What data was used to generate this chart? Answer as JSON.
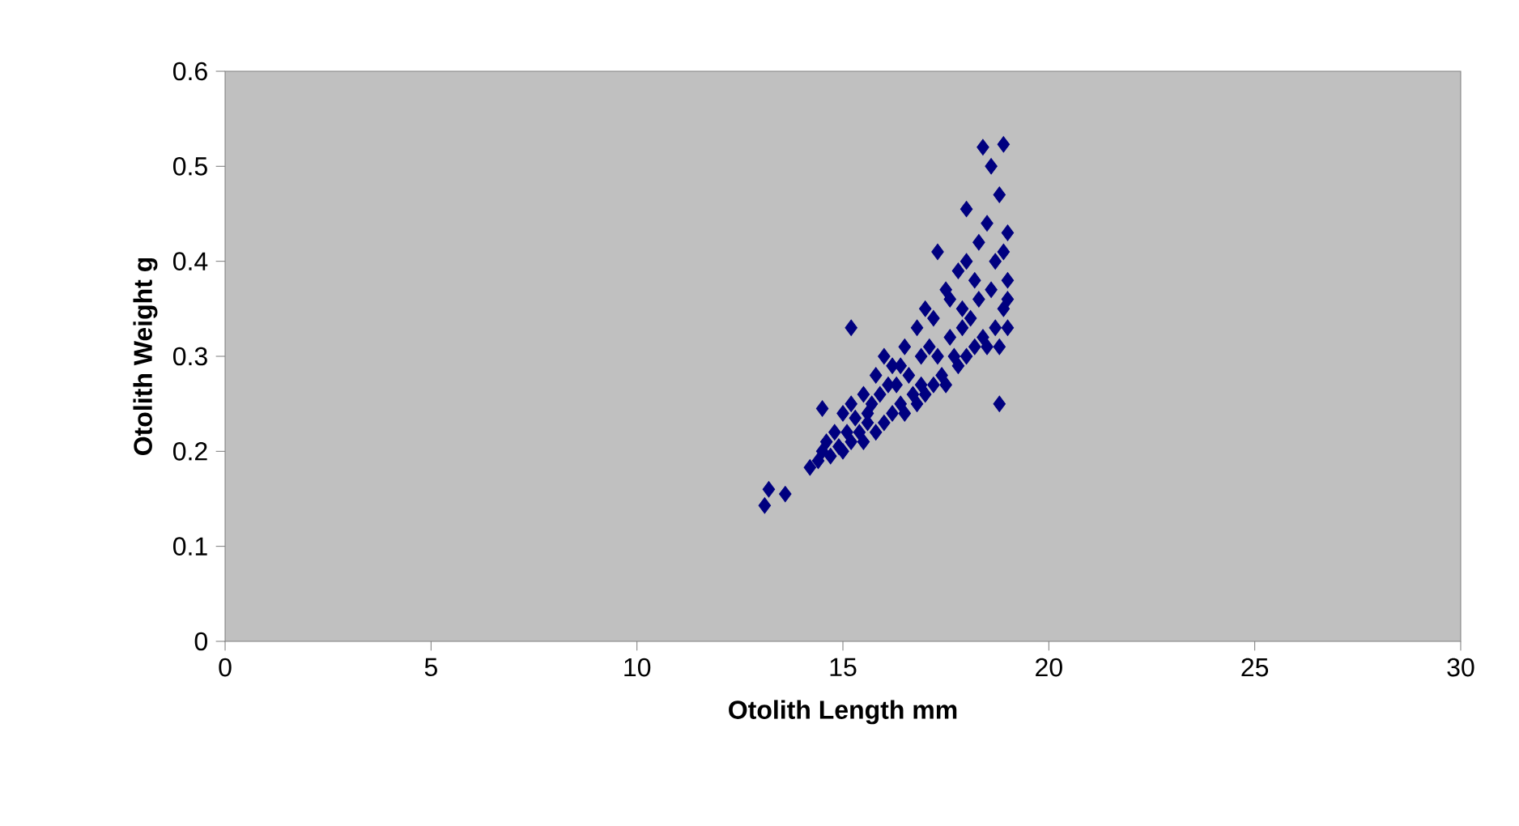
{
  "chart_data": {
    "type": "scatter",
    "xlabel": "Otolith Length mm",
    "ylabel": "Otolith Weight g",
    "xlim": [
      0,
      30
    ],
    "ylim": [
      0,
      0.6
    ],
    "xticks": [
      0,
      5,
      10,
      15,
      20,
      25,
      30
    ],
    "yticks": [
      0,
      0.1,
      0.2,
      0.3,
      0.4,
      0.5,
      0.6
    ],
    "marker": "diamond",
    "series": [
      {
        "color": "#000080",
        "x": [
          13.1,
          13.2,
          13.6,
          14.2,
          14.4,
          14.5,
          14.6,
          14.7,
          14.8,
          14.9,
          15.0,
          15.0,
          15.1,
          15.2,
          15.2,
          15.3,
          15.4,
          15.5,
          15.5,
          15.6,
          15.7,
          15.8,
          15.8,
          15.9,
          16.0,
          16.0,
          16.1,
          16.2,
          16.2,
          16.3,
          16.4,
          16.5,
          16.5,
          16.6,
          16.7,
          16.8,
          16.8,
          16.9,
          17.0,
          17.0,
          17.1,
          17.2,
          17.2,
          17.3,
          17.4,
          17.5,
          17.5,
          17.6,
          17.7,
          17.8,
          17.8,
          17.9,
          18.0,
          18.0,
          18.1,
          18.2,
          18.2,
          18.3,
          18.4,
          18.5,
          18.5,
          18.6,
          18.7,
          18.8,
          18.8,
          18.9,
          18.9,
          19.0,
          19.0,
          19.0,
          14.5,
          15.2,
          17.3,
          18.8,
          18.4,
          18.9,
          18.0,
          18.6,
          18.3,
          17.6,
          16.9,
          15.6,
          16.4,
          17.9,
          18.7,
          19.0
        ],
        "values": [
          0.143,
          0.16,
          0.155,
          0.183,
          0.19,
          0.2,
          0.21,
          0.195,
          0.22,
          0.205,
          0.2,
          0.24,
          0.22,
          0.21,
          0.25,
          0.235,
          0.22,
          0.21,
          0.26,
          0.24,
          0.25,
          0.22,
          0.28,
          0.26,
          0.23,
          0.3,
          0.27,
          0.24,
          0.29,
          0.27,
          0.25,
          0.24,
          0.31,
          0.28,
          0.26,
          0.25,
          0.33,
          0.3,
          0.26,
          0.35,
          0.31,
          0.27,
          0.34,
          0.3,
          0.28,
          0.27,
          0.37,
          0.32,
          0.3,
          0.29,
          0.39,
          0.35,
          0.3,
          0.4,
          0.34,
          0.31,
          0.38,
          0.36,
          0.32,
          0.31,
          0.44,
          0.37,
          0.33,
          0.31,
          0.47,
          0.35,
          0.41,
          0.33,
          0.38,
          0.43,
          0.245,
          0.33,
          0.41,
          0.25,
          0.52,
          0.523,
          0.455,
          0.5,
          0.42,
          0.36,
          0.27,
          0.23,
          0.29,
          0.33,
          0.4,
          0.36
        ]
      }
    ]
  }
}
